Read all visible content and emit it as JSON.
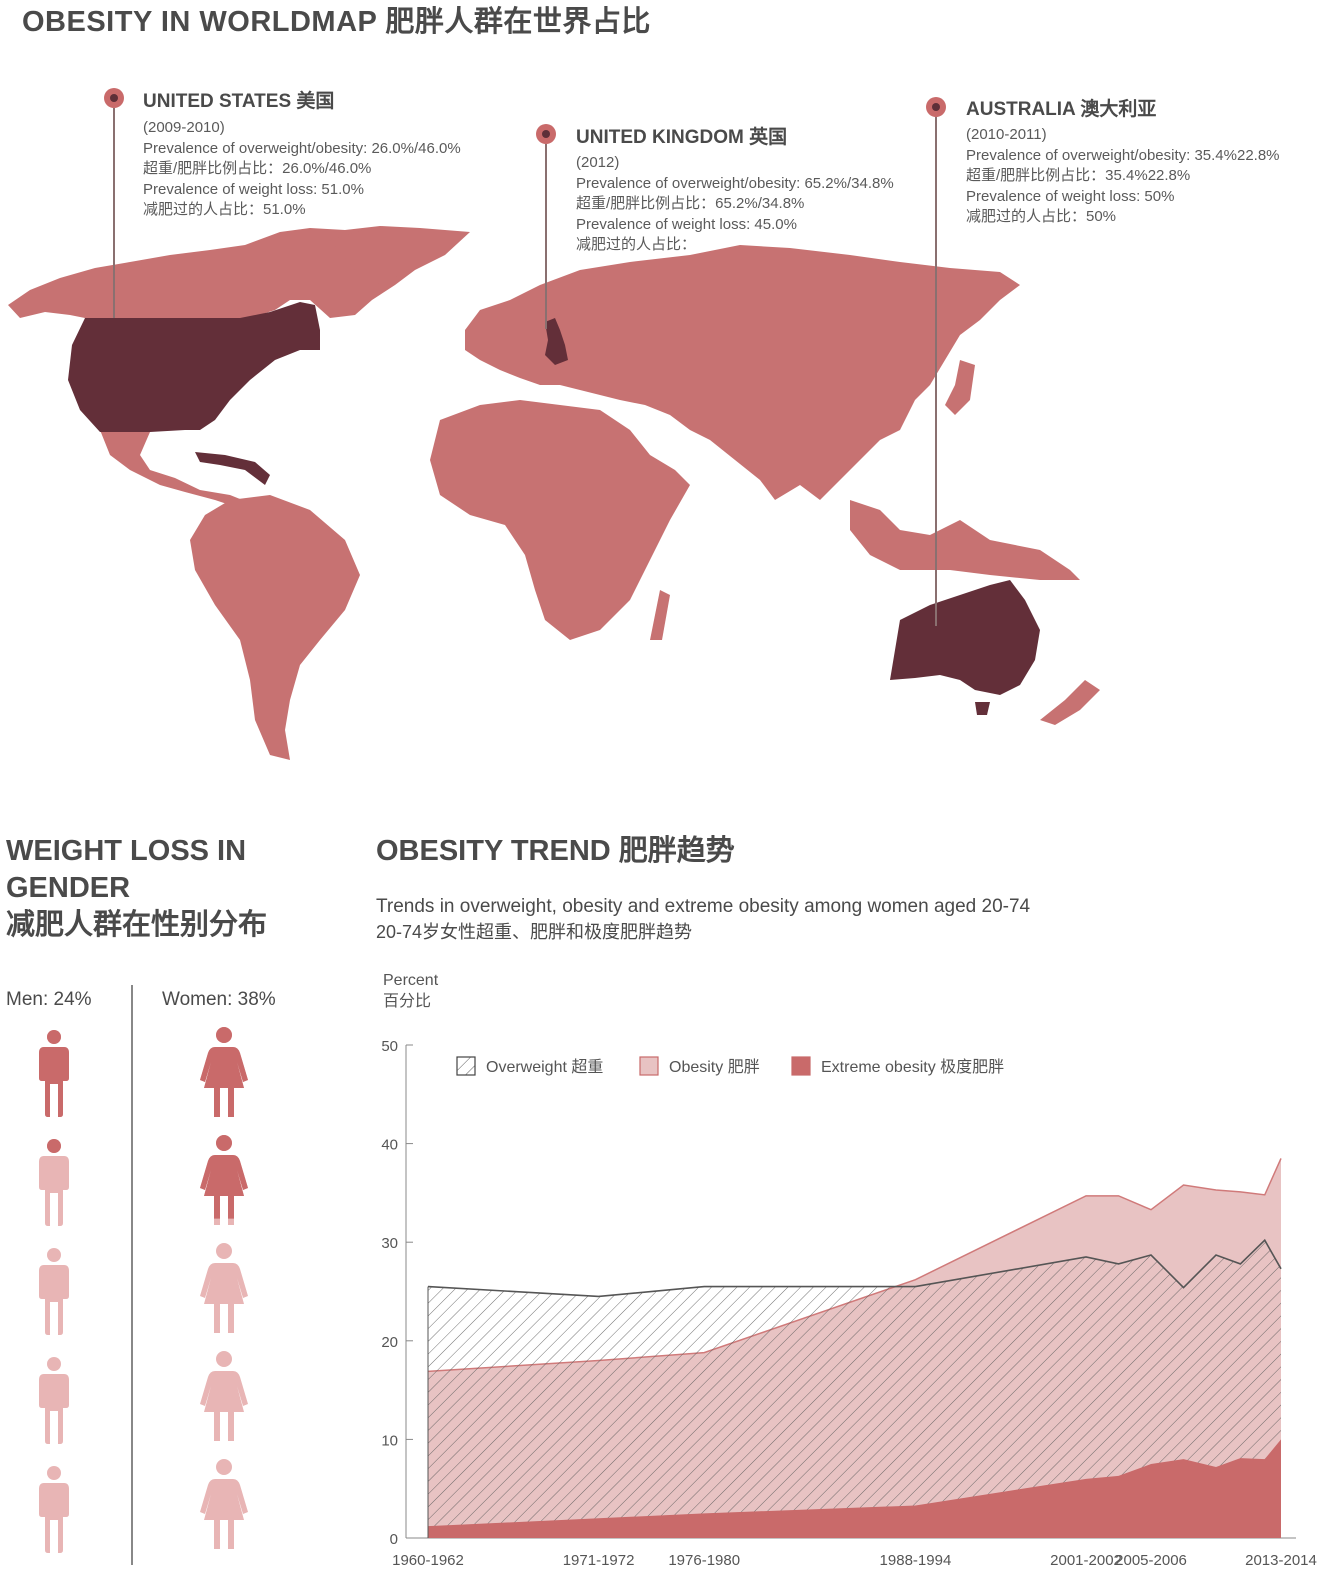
{
  "header": {
    "title": "OBESITY IN WORLDMAP 肥胖人群在世界占比"
  },
  "map": {
    "colors": {
      "land": "#c77272",
      "highlight": "#632f39",
      "pin": "#c96a6a"
    },
    "callouts": [
      {
        "id": "us",
        "name": "UNITED STATES 美国",
        "lines": [
          "(2009-2010)",
          "Prevalence of overweight/obesity: 26.0%/46.0%",
          "超重/肥胖比例占比：26.0%/46.0%",
          "Prevalence of weight loss: 51.0%",
          "减肥过的人占比：51.0%"
        ]
      },
      {
        "id": "uk",
        "name": "UNITED KINGDOM 英国",
        "lines": [
          "(2012)",
          "Prevalence of overweight/obesity: 65.2%/34.8%",
          "超重/肥胖比例占比：65.2%/34.8%",
          "Prevalence of weight loss: 45.0%",
          "减肥过的人占比："
        ]
      },
      {
        "id": "au",
        "name": "AUSTRALIA 澳大利亚",
        "lines": [
          "(2010-2011)",
          "Prevalence of overweight/obesity: 35.4%22.8%",
          "超重/肥胖比例占比：35.4%22.8%",
          "Prevalence of weight loss: 50%",
          "减肥过的人占比：50%"
        ]
      }
    ]
  },
  "gender": {
    "title_line1": "WEIGHT LOSS IN",
    "title_line2": "GENDER",
    "title_line3": "减肥人群在性别分布",
    "men_label": "Men: 24%",
    "women_label": "Women: 38%",
    "men_percent": 24,
    "women_percent": 38,
    "icon_count": 5,
    "colors": {
      "filled": "#c96a6a",
      "empty": "#e8b5b5"
    }
  },
  "trend": {
    "title": "OBESITY TREND 肥胖趋势",
    "subtitle_en": "Trends in overweight, obesity and extreme obesity among women aged 20-74",
    "subtitle_zh": "20-74岁女性超重、肥胖和极度肥胖趋势"
  },
  "chart_data": {
    "type": "area",
    "ylabel": "Percent",
    "ylabel_zh": "百分比",
    "ylim": [
      0,
      50
    ],
    "yticks": [
      0,
      10,
      20,
      30,
      40,
      50
    ],
    "xlim": [
      1961,
      2013.5
    ],
    "x_tick_labels": [
      {
        "x": 1961,
        "label": "1960-1962"
      },
      {
        "x": 1971.5,
        "label": "1971-1972"
      },
      {
        "x": 1978,
        "label": "1976-1980"
      },
      {
        "x": 1991,
        "label": "1988-1994"
      },
      {
        "x": 2001.5,
        "label": "2001-2002"
      },
      {
        "x": 2005.5,
        "label": "2005-2006"
      },
      {
        "x": 2013.5,
        "label": "2013-2014"
      }
    ],
    "series": [
      {
        "name": "Overweight 超重",
        "style": "hatched",
        "color": "#555555",
        "points": [
          [
            1961,
            25.5
          ],
          [
            1971.5,
            24.5
          ],
          [
            1978,
            25.5
          ],
          [
            1991,
            25.5
          ],
          [
            2001.5,
            28.5
          ],
          [
            2003.5,
            27.8
          ],
          [
            2005.5,
            28.7
          ],
          [
            2007.5,
            25.4
          ],
          [
            2009.5,
            28.7
          ],
          [
            2011,
            27.8
          ],
          [
            2012.5,
            30.2
          ],
          [
            2013.5,
            27.3
          ]
        ]
      },
      {
        "name": "Obesity 肥胖",
        "style": "fill",
        "color": "#e8c3c3",
        "line": "#d07a7a",
        "points": [
          [
            1961,
            16.9
          ],
          [
            1971.5,
            18.0
          ],
          [
            1978,
            18.8
          ],
          [
            1991,
            26.2
          ],
          [
            2001.5,
            34.7
          ],
          [
            2003.5,
            34.7
          ],
          [
            2005.5,
            33.3
          ],
          [
            2007.5,
            35.8
          ],
          [
            2009.5,
            35.3
          ],
          [
            2011,
            35.1
          ],
          [
            2012.5,
            34.8
          ],
          [
            2013.5,
            38.5
          ]
        ]
      },
      {
        "name": "Extreme obesity 极度肥胖",
        "style": "fill",
        "color": "#c96a6a",
        "points": [
          [
            1961,
            1.2
          ],
          [
            1971.5,
            2.0
          ],
          [
            1978,
            2.5
          ],
          [
            1991,
            3.3
          ],
          [
            2001.5,
            6.0
          ],
          [
            2003.5,
            6.3
          ],
          [
            2005.5,
            7.5
          ],
          [
            2007.5,
            8.0
          ],
          [
            2009.5,
            7.2
          ],
          [
            2011,
            8.1
          ],
          [
            2012.5,
            8.0
          ],
          [
            2013.5,
            10.0
          ]
        ]
      }
    ],
    "legend": {
      "placement": "top",
      "items": [
        "Overweight 超重",
        "Obesity 肥胖",
        "Extreme obesity 极度肥胖"
      ]
    }
  }
}
